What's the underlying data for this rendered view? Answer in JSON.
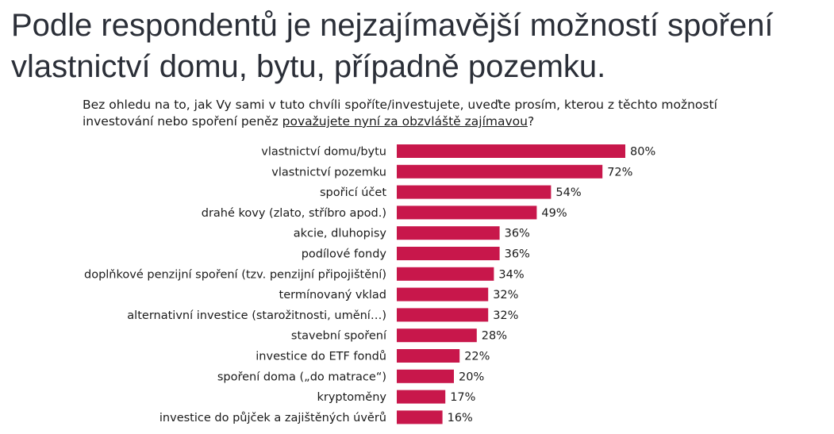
{
  "headline": "Podle respondentů je nejzajímavější možností spoření vlastnictví domu, bytu, případně pozemku.",
  "question": {
    "text": "Bez ohledu na to, jak Vy sami v tuto chvíli spoříte/investujete, uveďte prosím, kterou z těchto možností investování nebo spoření peněz ",
    "underlined": "považujete nyní za obzvláště zajímavou",
    "suffix": "?"
  },
  "chart_data": {
    "type": "bar",
    "orientation": "horizontal",
    "categories": [
      "vlastnictví domu/bytu",
      "vlastnictví pozemku",
      "spořicí účet",
      "drahé kovy (zlato, stříbro apod.)",
      "akcie, dluhopisy",
      "podílové fondy",
      "doplňkové penzijní spoření (tzv. penzijní připojištění)",
      "termínovaný vklad",
      "alternativní investice (starožitnosti, umění…)",
      "stavební spoření",
      "investice do ETF fondů",
      "spoření doma („do matrace“)",
      "kryptoměny",
      "investice do půjček a zajištěných úvěrů"
    ],
    "values": [
      80,
      72,
      54,
      49,
      36,
      36,
      34,
      32,
      32,
      28,
      22,
      20,
      17,
      16
    ],
    "value_labels": [
      "80%",
      "72%",
      "54%",
      "49%",
      "36%",
      "36%",
      "34%",
      "32%",
      "32%",
      "28%",
      "22%",
      "20%",
      "17%",
      "16%"
    ],
    "unit": "%",
    "xlim": [
      0,
      100
    ],
    "grid": false,
    "legend": "none",
    "bar_color": "#c8174b"
  }
}
